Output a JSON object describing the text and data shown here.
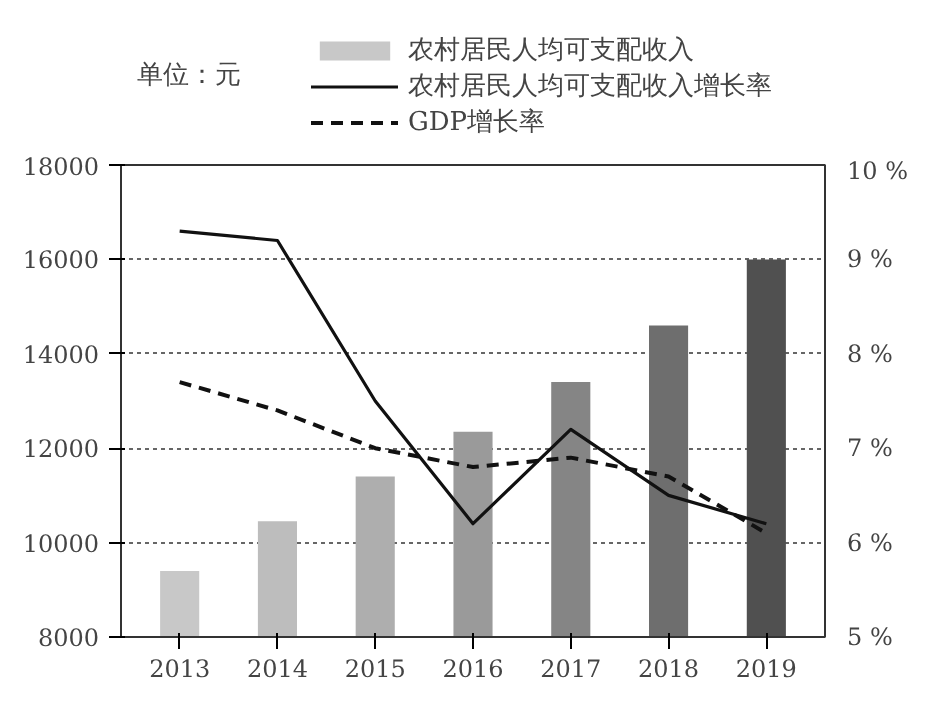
{
  "chart_data": {
    "type": "bar",
    "ylabel": "单位：元",
    "categories": [
      "2013",
      "2014",
      "2015",
      "2016",
      "2017",
      "2018",
      "2019"
    ],
    "ylim": [
      8000,
      18000
    ],
    "yticks": [
      8000,
      10000,
      12000,
      14000,
      16000,
      18000
    ],
    "y2lim": [
      5,
      10
    ],
    "y2ticks": [
      {
        "value": 5,
        "label": "5 %"
      },
      {
        "value": 6,
        "label": "6 %"
      },
      {
        "value": 7,
        "label": "7 %"
      },
      {
        "value": 8,
        "label": "8 %"
      },
      {
        "value": 9,
        "label": "9 %"
      },
      {
        "value": 10,
        "label": "10 %"
      }
    ],
    "grid": "y",
    "legend": "top",
    "series": [
      {
        "name": "农村居民人均可支配收入",
        "colors": [
          "#c8c8c8",
          "#bdbdbd",
          "#aeaeae",
          "#9a9a9a",
          "#858585",
          "#6e6e6e",
          "#505050"
        ],
        "values": [
          9400,
          10450,
          11400,
          12350,
          13400,
          14600,
          16000
        ]
      },
      {
        "name": "农村居民人均可支配收入增长率",
        "type": "line",
        "axis": "y2",
        "color": "#111111",
        "line_style": "solid",
        "values": [
          9.3,
          9.2,
          7.5,
          6.2,
          7.2,
          6.5,
          6.2
        ]
      },
      {
        "name": "GDP增长率",
        "type": "line",
        "axis": "y2",
        "color": "#111111",
        "line_style": "dashed",
        "values": [
          7.7,
          7.4,
          7.0,
          6.8,
          6.9,
          6.7,
          6.1
        ]
      }
    ]
  }
}
